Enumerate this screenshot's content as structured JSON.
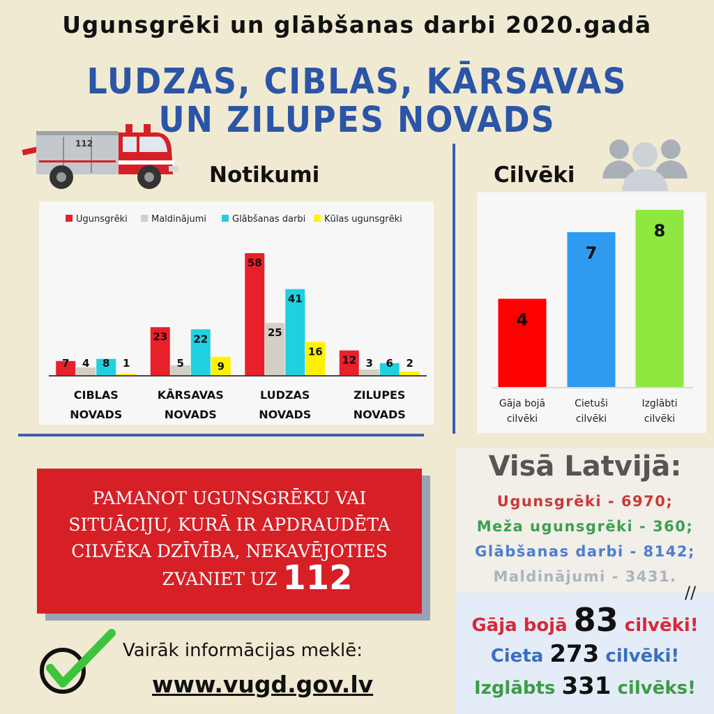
{
  "header": {
    "title": "Ugunsgrēki un glābšanas darbi 2020.gadā",
    "region_line1": "LUDZAS, CIBLAS, KĀRSAVAS",
    "region_line2": "UN ZILUPES NOVADS"
  },
  "truck": {
    "label": "112"
  },
  "sections": {
    "events_title": "Notikumi",
    "people_title": "Cilvēki"
  },
  "chart_data": [
    {
      "type": "bar",
      "title": "Notikumi",
      "categories": [
        "CIBLAS NOVADS",
        "KĀRSAVAS NOVADS",
        "LUDZAS NOVADS",
        "ZILUPES NOVADS"
      ],
      "category_lines": [
        [
          "CIBLAS",
          "NOVADS"
        ],
        [
          "KĀRSAVAS",
          "NOVADS"
        ],
        [
          "LUDZAS",
          "NOVADS"
        ],
        [
          "ZILUPES",
          "NOVADS"
        ]
      ],
      "series": [
        {
          "name": "Ugunsgrēki",
          "color": "#e8202a",
          "values": [
            7,
            23,
            58,
            12
          ]
        },
        {
          "name": "Maldinājumi",
          "color": "#d3cfc3",
          "values": [
            4,
            5,
            25,
            3
          ]
        },
        {
          "name": "Glābšanas darbi",
          "color": "#1fd0e0",
          "values": [
            8,
            22,
            41,
            6
          ]
        },
        {
          "name": "Kūlas ugunsgrēki",
          "color": "#fff200",
          "values": [
            1,
            9,
            16,
            2
          ]
        }
      ],
      "ylim": [
        0,
        60
      ],
      "grid": false,
      "legend": "top"
    },
    {
      "type": "bar",
      "title": "Cilvēki",
      "categories": [
        "Gāja bojā cilvēki",
        "Cietuši cilvēki",
        "Izglābti cilvēki"
      ],
      "category_lines": [
        [
          "Gāja bojā",
          "cilvēki"
        ],
        [
          "Cietuši",
          "cilvēki"
        ],
        [
          "Izglābti",
          "cilvēki"
        ]
      ],
      "values": [
        4,
        7,
        8
      ],
      "colors": [
        "#ff0000",
        "#2e9bf0",
        "#8ee840"
      ],
      "ylim": [
        0,
        8.5
      ],
      "grid": false
    }
  ],
  "alert": {
    "line1": "PAMANOT UGUNSGRĒKU VAI",
    "line2": "SITUĀCIJU, KURĀ IR APDRAUDĒTA",
    "line3": "CILVĒKA DZĪVĪBA, NEKAVĒJOTIES",
    "call_text": "ZVANIET UZ",
    "number": "112"
  },
  "latvia": {
    "title": "Visā Latvijā:",
    "fires": "Ugunsgrēki - 6970;",
    "forest_fires": "Meža ugunsgrēki - 360;",
    "rescue": "Glābšanas darbi - 8142;",
    "false_alarms": "Maldinājumi - 3431.",
    "slash": "//",
    "died_label": "Gāja bojā",
    "died_value": "83",
    "died_suffix": "cilvēki!",
    "injured_label": "Cieta",
    "injured_value": "273",
    "injured_suffix": "cilvēki!",
    "saved_label": "Izglābts",
    "saved_value": "331",
    "saved_suffix": "cilvēks!"
  },
  "footer": {
    "more_info": "Vairāk informācijas meklē:",
    "website": "www.vugd.gov.lv"
  },
  "colors": {
    "background": "#f0ead2",
    "accent_blue": "#2b55a6",
    "alert_red": "#d71f26",
    "check_green": "#3cc43c"
  }
}
